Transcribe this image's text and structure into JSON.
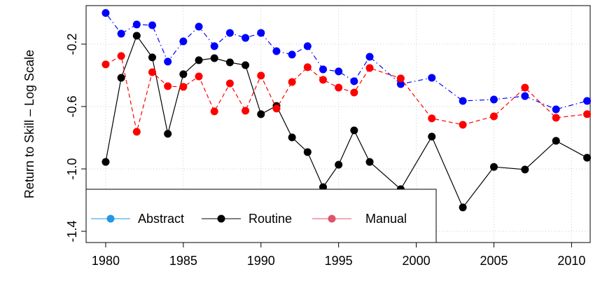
{
  "chart_data": {
    "type": "line",
    "ylabel": "Return to Skill – Log Scale",
    "x": [
      1980,
      1981,
      1982,
      1983,
      1984,
      1985,
      1986,
      1987,
      1988,
      1989,
      1990,
      1991,
      1992,
      1993,
      1994,
      1995,
      1996,
      1997,
      1999,
      2001,
      2003,
      2005,
      2007,
      2009,
      2011
    ],
    "series": [
      {
        "name": "Abstract",
        "color": "#0000ff",
        "legend_color": "#2297e6",
        "dash": "dotdash",
        "values": [
          0.0,
          -0.133,
          -0.074,
          -0.079,
          -0.312,
          -0.182,
          -0.088,
          -0.213,
          -0.128,
          -0.16,
          -0.128,
          -0.245,
          -0.267,
          -0.213,
          -0.362,
          -0.375,
          -0.438,
          -0.281,
          -0.456,
          -0.416,
          -0.564,
          -0.555,
          -0.533,
          -0.618,
          -0.564
        ]
      },
      {
        "name": "Routine",
        "color": "#000000",
        "legend_color": "#000000",
        "dash": "solid",
        "values": [
          -0.955,
          -0.416,
          -0.146,
          -0.285,
          -0.775,
          -0.393,
          -0.303,
          -0.29,
          -0.317,
          -0.335,
          -0.649,
          -0.596,
          -0.798,
          -0.892,
          -1.117,
          -0.973,
          -0.753,
          -0.955,
          -1.13,
          -0.793,
          -1.247,
          -0.987,
          -1.004,
          -0.82,
          -0.928
        ]
      },
      {
        "name": "Manual",
        "color": "#ff0000",
        "legend_color": "#df536b",
        "dash": "dashed",
        "values": [
          -0.33,
          -0.276,
          -0.762,
          -0.38,
          -0.47,
          -0.474,
          -0.407,
          -0.631,
          -0.452,
          -0.627,
          -0.402,
          -0.613,
          -0.443,
          -0.348,
          -0.429,
          -0.479,
          -0.51,
          -0.353,
          -0.42,
          -0.676,
          -0.717,
          -0.663,
          -0.479,
          -0.672,
          -0.649
        ]
      }
    ],
    "xlim": [
      1978.74,
      2011.2
    ],
    "xticks": [
      1980,
      1985,
      1990,
      1995,
      2000,
      2005,
      2010
    ],
    "ylim": [
      -1.472,
      0.047
    ],
    "yticks": [
      {
        "value": -1.4,
        "label": "-1.4"
      },
      {
        "value": -1.0,
        "label": "-1.0"
      },
      {
        "value": -0.6,
        "label": "-0.6"
      },
      {
        "value": -0.2,
        "label": "-0.2"
      }
    ],
    "grid": true,
    "legend": "bottom-left"
  }
}
